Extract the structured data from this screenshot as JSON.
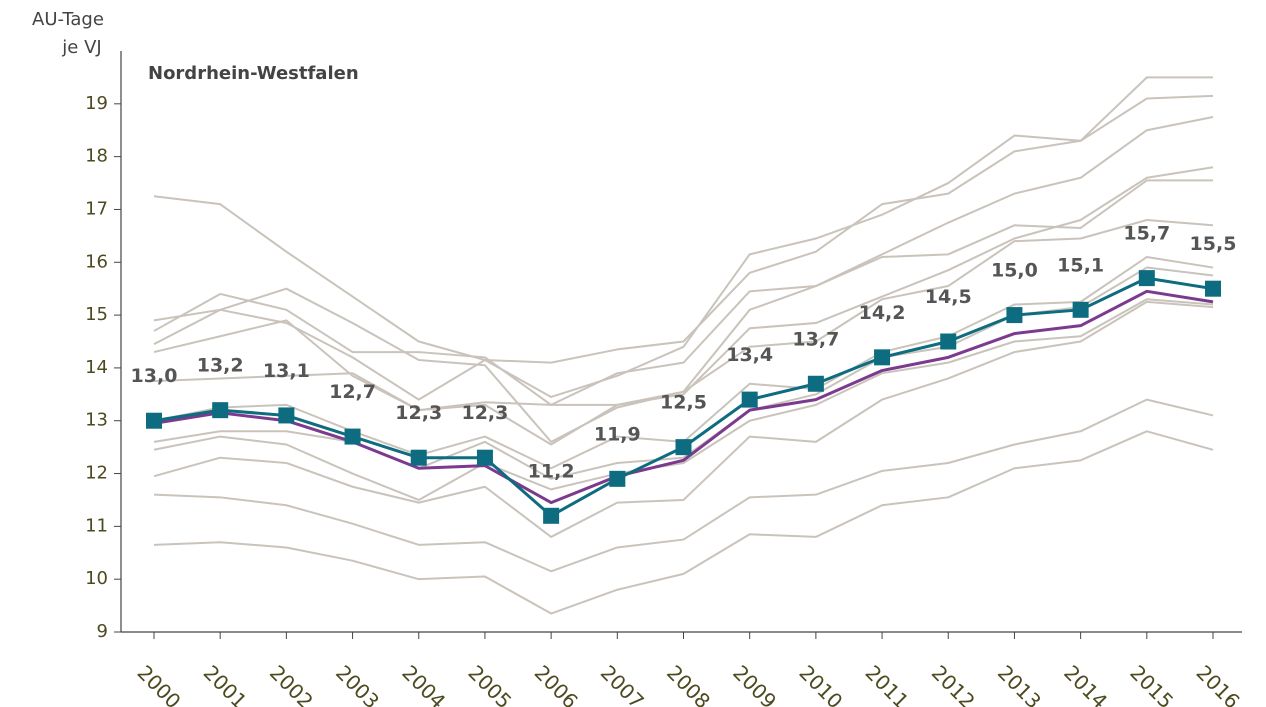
{
  "chart_data": {
    "type": "line",
    "title": "Nordrhein-Westfalen",
    "y_label": [
      "AU-Tage",
      "je VJ"
    ],
    "categories": [
      "2000",
      "2001",
      "2002",
      "2003",
      "2004",
      "2005",
      "2006",
      "2007",
      "2008",
      "2009",
      "2010",
      "2011",
      "2012",
      "2013",
      "2014",
      "2015",
      "2016"
    ],
    "ylim": [
      9,
      20
    ],
    "yticks": [
      9,
      10,
      11,
      12,
      13,
      14,
      15,
      16,
      17,
      18,
      19
    ],
    "series": [
      {
        "color": "#c9c3bb",
        "values": [
          17.25,
          17.1,
          16.2,
          15.35,
          14.5,
          14.15,
          13.45,
          13.85,
          14.4,
          16.15,
          16.45,
          16.9,
          17.5,
          18.4,
          18.3,
          19.5,
          19.5
        ]
      },
      {
        "color": "#c9c3bb",
        "values": [
          14.9,
          15.1,
          14.85,
          14.2,
          13.4,
          14.15,
          14.1,
          14.35,
          14.5,
          15.8,
          16.2,
          17.1,
          17.3,
          18.1,
          18.3,
          19.1,
          19.15
        ]
      },
      {
        "color": "#c9c3bb",
        "values": [
          14.7,
          15.4,
          15.1,
          14.3,
          14.3,
          14.2,
          13.3,
          13.9,
          14.1,
          15.45,
          15.55,
          16.15,
          16.75,
          17.3,
          17.6,
          18.5,
          18.75
        ]
      },
      {
        "color": "#c9c3bb",
        "values": [
          14.45,
          15.1,
          15.5,
          14.85,
          14.15,
          14.05,
          12.6,
          13.25,
          13.55,
          15.1,
          15.55,
          16.1,
          16.15,
          16.7,
          16.65,
          17.55,
          17.55
        ]
      },
      {
        "color": "#c9c3bb",
        "values": [
          14.3,
          14.6,
          14.9,
          13.85,
          13.2,
          13.35,
          13.3,
          13.3,
          13.5,
          14.75,
          14.85,
          15.35,
          15.85,
          16.45,
          16.8,
          17.6,
          17.8
        ]
      },
      {
        "color": "#c9c3bb",
        "values": [
          13.75,
          13.8,
          13.85,
          13.9,
          13.2,
          13.3,
          12.55,
          13.3,
          13.55,
          14.4,
          14.5,
          15.3,
          15.55,
          16.4,
          16.45,
          16.8,
          16.7
        ]
      },
      {
        "color": "#c9c3bb",
        "values": [
          13.0,
          13.25,
          13.3,
          12.8,
          12.35,
          12.7,
          12.1,
          12.7,
          12.6,
          13.7,
          13.6,
          14.3,
          14.6,
          15.2,
          15.25,
          16.1,
          15.9
        ]
      },
      {
        "color": "#c9c3bb",
        "values": [
          12.6,
          12.8,
          12.8,
          12.6,
          12.1,
          12.6,
          11.9,
          12.2,
          12.3,
          13.2,
          13.5,
          14.2,
          14.4,
          15.0,
          15.15,
          15.9,
          15.75
        ]
      },
      {
        "color": "#c9c3bb",
        "values": [
          12.45,
          12.7,
          12.55,
          12.0,
          11.5,
          12.2,
          11.7,
          12.0,
          12.2,
          13.0,
          13.3,
          13.9,
          14.1,
          14.5,
          14.6,
          15.3,
          15.2
        ]
      },
      {
        "color": "#c9c3bb",
        "values": [
          11.95,
          12.3,
          12.2,
          11.75,
          11.45,
          11.75,
          10.8,
          11.45,
          11.5,
          12.7,
          12.6,
          13.4,
          13.8,
          14.3,
          14.5,
          15.25,
          15.15
        ]
      },
      {
        "color": "#c9c3bb",
        "values": [
          11.6,
          11.55,
          11.4,
          11.05,
          10.65,
          10.7,
          10.15,
          10.6,
          10.75,
          11.55,
          11.6,
          12.05,
          12.2,
          12.55,
          12.8,
          13.4,
          13.1
        ]
      },
      {
        "color": "#c9c3bb",
        "values": [
          10.65,
          10.7,
          10.6,
          10.35,
          10.0,
          10.05,
          9.35,
          9.8,
          10.1,
          10.85,
          10.8,
          11.4,
          11.55,
          12.1,
          12.25,
          12.8,
          12.45
        ]
      },
      {
        "color": "#7b3a8e",
        "values": [
          12.95,
          13.15,
          13.0,
          12.6,
          12.1,
          12.15,
          11.45,
          11.95,
          12.25,
          13.2,
          13.4,
          13.95,
          14.2,
          14.65,
          14.8,
          15.45,
          15.25
        ]
      },
      {
        "color": "#0d6c80",
        "marker": "square",
        "values": [
          13.0,
          13.2,
          13.1,
          12.7,
          12.3,
          12.3,
          11.2,
          11.9,
          12.5,
          13.4,
          13.7,
          14.2,
          14.5,
          15.0,
          15.1,
          15.7,
          15.5
        ],
        "value_labels": [
          "13,0",
          "13,2",
          "13,1",
          "12,7",
          "12,3",
          "12,3",
          "11,2",
          "11,9",
          "12,5",
          "13,4",
          "13,7",
          "14,2",
          "14,5",
          "15,0",
          "15,1",
          "15,7",
          "15,5"
        ]
      }
    ]
  }
}
